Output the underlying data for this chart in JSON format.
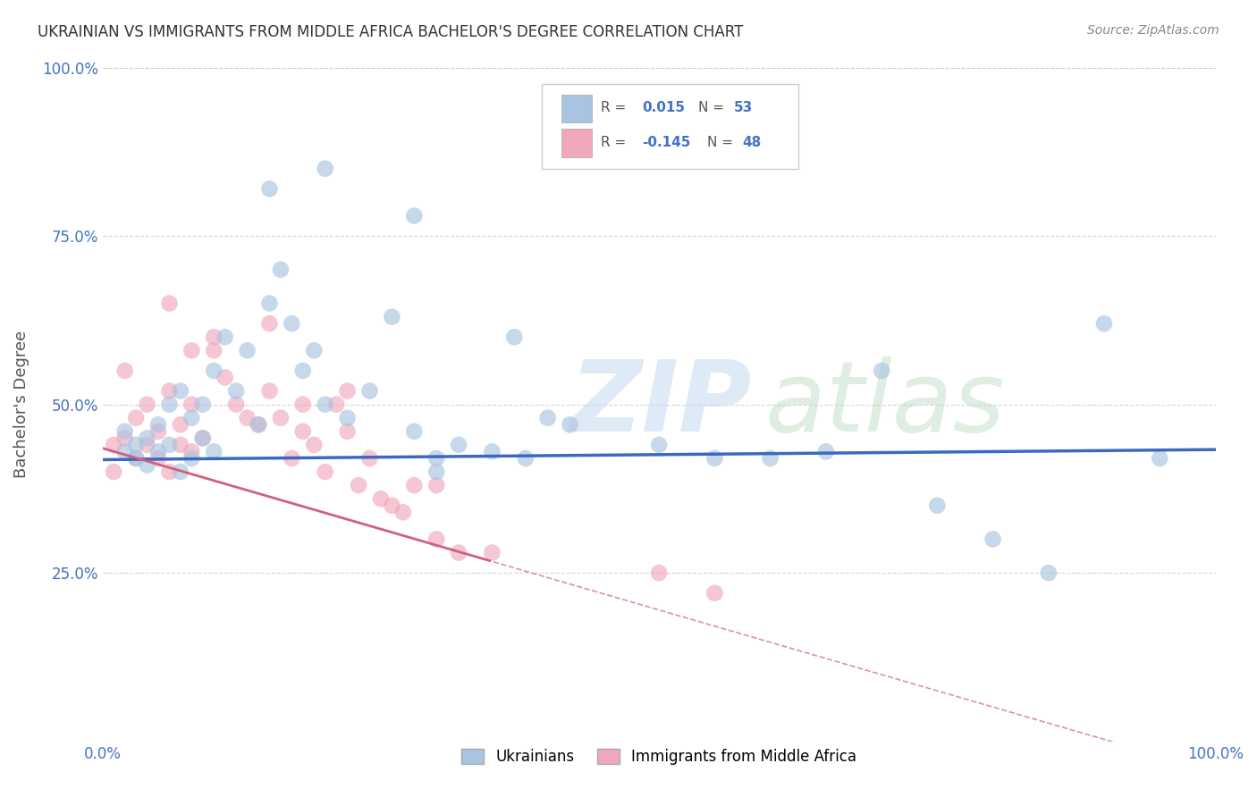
{
  "title": "UKRAINIAN VS IMMIGRANTS FROM MIDDLE AFRICA BACHELOR'S DEGREE CORRELATION CHART",
  "source": "Source: ZipAtlas.com",
  "ylabel": "Bachelor's Degree",
  "xlim": [
    0.0,
    1.0
  ],
  "ylim": [
    0.0,
    1.0
  ],
  "legend_labels": [
    "Ukrainians",
    "Immigrants from Middle Africa"
  ],
  "blue_R": 0.015,
  "blue_N": 53,
  "pink_R": -0.145,
  "pink_N": 48,
  "blue_color": "#a8c4e0",
  "pink_color": "#f0a8bc",
  "blue_line_color": "#3a6abf",
  "pink_line_color": "#d06080",
  "pink_line_solid_end": 0.35,
  "blue_scatter_x": [
    0.02,
    0.02,
    0.03,
    0.03,
    0.04,
    0.04,
    0.05,
    0.05,
    0.06,
    0.06,
    0.07,
    0.07,
    0.08,
    0.08,
    0.09,
    0.09,
    0.1,
    0.1,
    0.11,
    0.12,
    0.13,
    0.14,
    0.15,
    0.16,
    0.17,
    0.18,
    0.19,
    0.2,
    0.22,
    0.24,
    0.26,
    0.28,
    0.3,
    0.32,
    0.35,
    0.38,
    0.4,
    0.42,
    0.3,
    0.28,
    0.15,
    0.2,
    0.37,
    0.5,
    0.55,
    0.6,
    0.65,
    0.7,
    0.75,
    0.8,
    0.85,
    0.9,
    0.95
  ],
  "blue_scatter_y": [
    0.43,
    0.46,
    0.44,
    0.42,
    0.45,
    0.41,
    0.47,
    0.43,
    0.5,
    0.44,
    0.52,
    0.4,
    0.48,
    0.42,
    0.45,
    0.5,
    0.55,
    0.43,
    0.6,
    0.52,
    0.58,
    0.47,
    0.65,
    0.7,
    0.62,
    0.55,
    0.58,
    0.5,
    0.48,
    0.52,
    0.63,
    0.46,
    0.42,
    0.44,
    0.43,
    0.42,
    0.48,
    0.47,
    0.4,
    0.78,
    0.82,
    0.85,
    0.6,
    0.44,
    0.42,
    0.42,
    0.43,
    0.55,
    0.35,
    0.3,
    0.25,
    0.62,
    0.42
  ],
  "pink_scatter_x": [
    0.01,
    0.01,
    0.02,
    0.02,
    0.03,
    0.03,
    0.04,
    0.04,
    0.05,
    0.05,
    0.06,
    0.06,
    0.07,
    0.07,
    0.08,
    0.08,
    0.09,
    0.1,
    0.11,
    0.12,
    0.13,
    0.14,
    0.15,
    0.16,
    0.17,
    0.18,
    0.19,
    0.2,
    0.21,
    0.22,
    0.23,
    0.24,
    0.25,
    0.26,
    0.27,
    0.28,
    0.3,
    0.32,
    0.15,
    0.08,
    0.06,
    0.1,
    0.18,
    0.22,
    0.3,
    0.35,
    0.5,
    0.55
  ],
  "pink_scatter_y": [
    0.44,
    0.4,
    0.55,
    0.45,
    0.48,
    0.42,
    0.5,
    0.44,
    0.42,
    0.46,
    0.52,
    0.4,
    0.47,
    0.44,
    0.43,
    0.5,
    0.45,
    0.58,
    0.54,
    0.5,
    0.48,
    0.47,
    0.52,
    0.48,
    0.42,
    0.46,
    0.44,
    0.4,
    0.5,
    0.46,
    0.38,
    0.42,
    0.36,
    0.35,
    0.34,
    0.38,
    0.3,
    0.28,
    0.62,
    0.58,
    0.65,
    0.6,
    0.5,
    0.52,
    0.38,
    0.28,
    0.25,
    0.22
  ],
  "blue_line_intercept": 0.418,
  "blue_line_slope": 0.015,
  "pink_line_intercept": 0.435,
  "pink_line_slope": -0.48
}
